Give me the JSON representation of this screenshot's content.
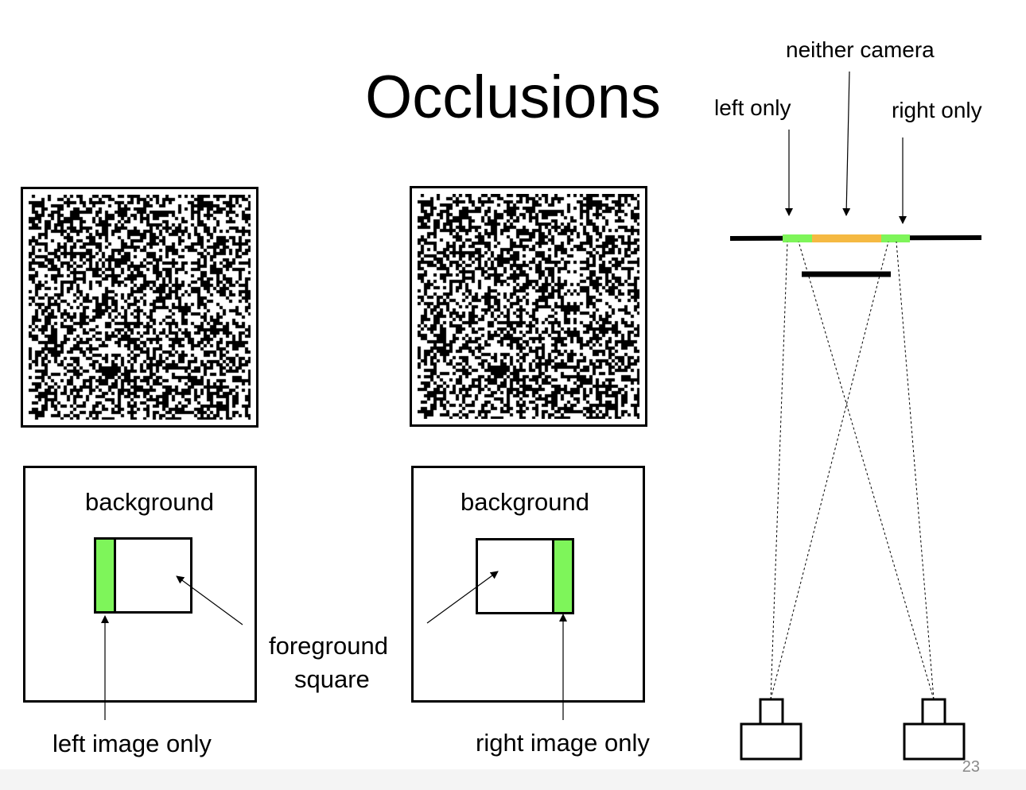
{
  "slide": {
    "title": "Occlusions",
    "page_number": "23"
  },
  "left_panel": {
    "region_label": "background",
    "bottom_label": "left image only"
  },
  "right_panel": {
    "region_label": "background",
    "bottom_label": "right image only"
  },
  "foreground_label": {
    "line1": "foreground",
    "line2": "square"
  },
  "camera_diagram": {
    "label_neither": "neither camera",
    "label_left_only": "left only",
    "label_right_only": "right only"
  },
  "colors": {
    "green": "#7ef55a",
    "orange": "#f5b942",
    "black": "#000000"
  },
  "icons": [
    "random-dot-stereogram-left",
    "random-dot-stereogram-right",
    "camera-icon"
  ]
}
